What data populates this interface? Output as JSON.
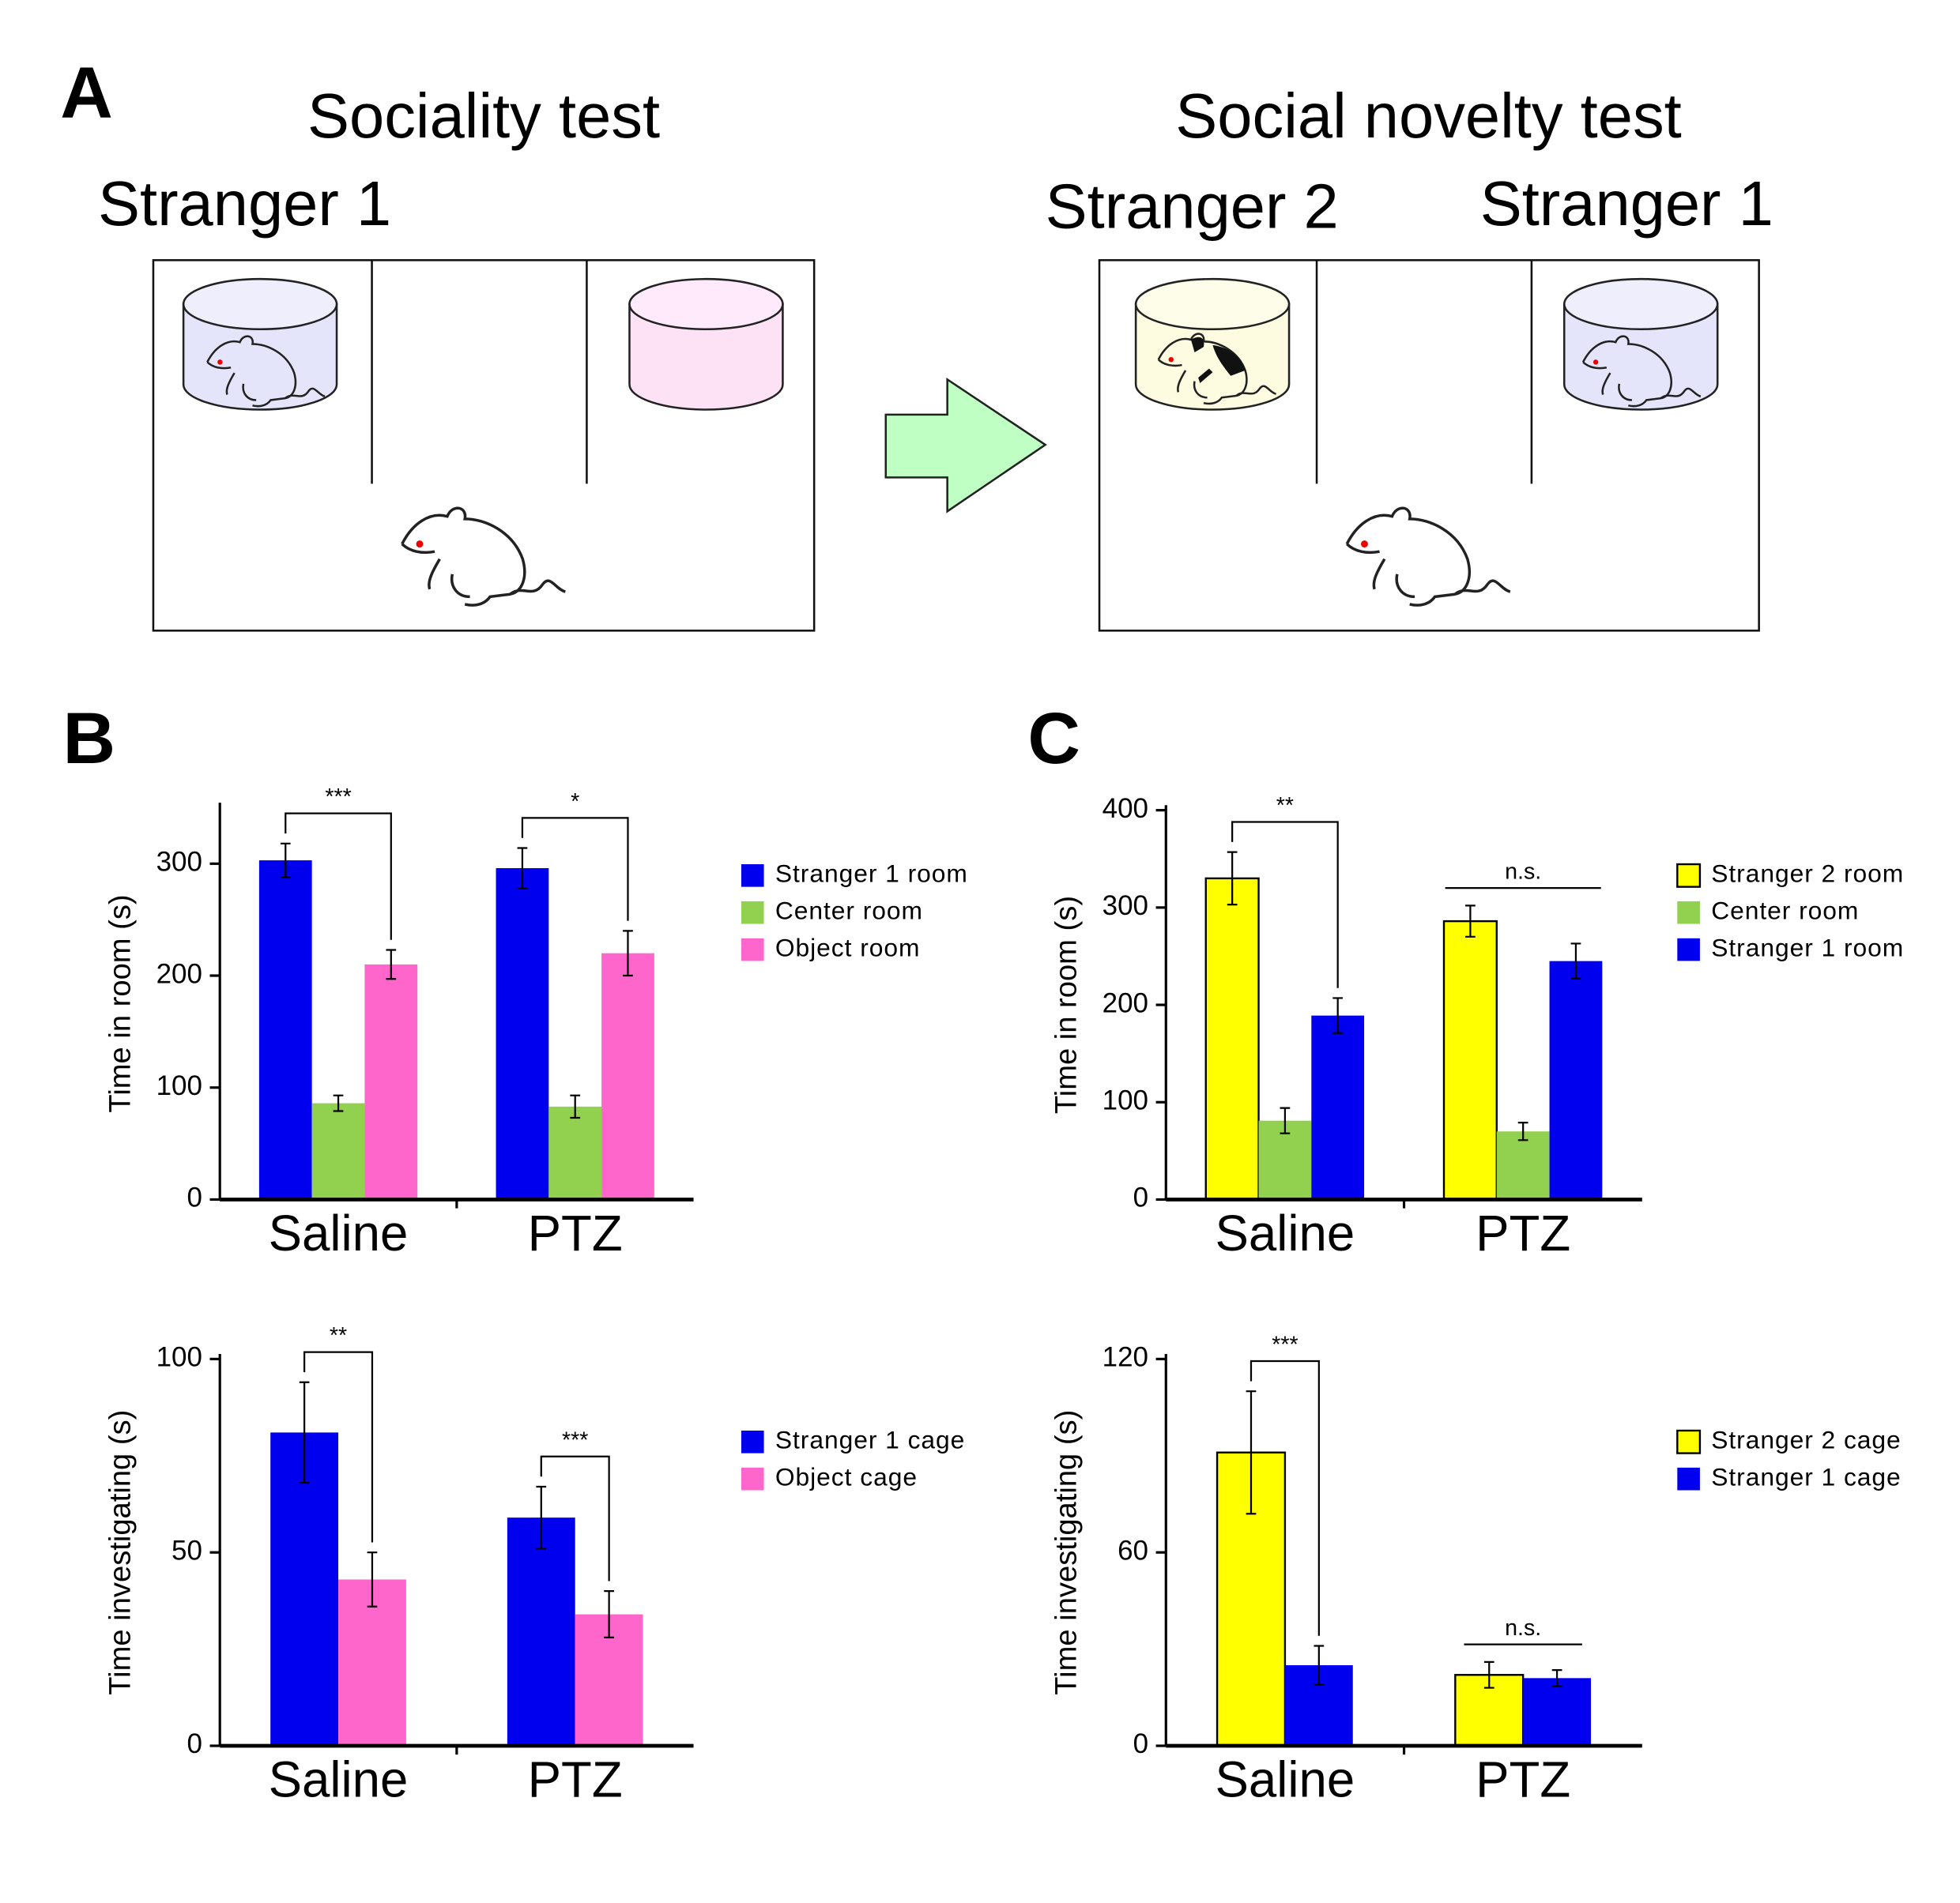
{
  "panel_a": {
    "label": "A",
    "left_title": "Sociality test",
    "left_stranger": "Stranger 1",
    "right_title": "Social novelty test",
    "right_stranger_left": "Stranger 2",
    "right_stranger_right": "Stranger 1"
  },
  "chart_data": [
    {
      "type": "bar",
      "label": "B",
      "ylabel": "Time in room (s)",
      "categories": [
        "Saline",
        "PTZ"
      ],
      "ylim": [
        0,
        350
      ],
      "yticks": [
        0,
        100,
        200,
        300
      ],
      "legend": "right",
      "series": [
        {
          "name": "Stranger 1 room",
          "color": "#0000ee",
          "values": [
            303,
            296
          ],
          "errors": [
            15,
            18
          ]
        },
        {
          "name": "Center room",
          "color": "#92d050",
          "values": [
            86,
            83
          ],
          "errors": [
            7,
            10
          ]
        },
        {
          "name": "Object room",
          "color": "#ff66cc",
          "values": [
            210,
            220
          ],
          "errors": [
            13,
            20
          ]
        }
      ],
      "annotations": [
        {
          "text": "***",
          "style": "bracket"
        },
        {
          "text": "*",
          "style": "bracket"
        }
      ]
    },
    {
      "type": "bar",
      "ylabel": "Time investigating (s)",
      "categories": [
        "Saline",
        "PTZ"
      ],
      "ylim": [
        0,
        100
      ],
      "yticks": [
        0,
        50,
        100
      ],
      "legend": "right",
      "series": [
        {
          "name": "Stranger 1 cage",
          "color": "#0000ee",
          "values": [
            81,
            59
          ],
          "errors": [
            13,
            8
          ]
        },
        {
          "name": "Object cage",
          "color": "#ff66cc",
          "values": [
            43,
            34
          ],
          "errors": [
            7,
            6
          ]
        }
      ],
      "annotations": [
        {
          "text": "**",
          "style": "bracket"
        },
        {
          "text": "***",
          "style": "bracket"
        }
      ]
    },
    {
      "type": "bar",
      "label": "C",
      "ylabel": "Time in room (s)",
      "categories": [
        "Saline",
        "PTZ"
      ],
      "ylim": [
        0,
        400
      ],
      "yticks": [
        0,
        100,
        200,
        300,
        400
      ],
      "legend": "right",
      "series": [
        {
          "name": "Stranger 2 room",
          "color": "#ffff00",
          "edgecolor": "#000000",
          "values": [
            330,
            286
          ],
          "errors": [
            27,
            16
          ]
        },
        {
          "name": "Center room",
          "color": "#92d050",
          "values": [
            81,
            70
          ],
          "errors": [
            13,
            9
          ]
        },
        {
          "name": "Stranger 1 room",
          "color": "#0000ee",
          "values": [
            189,
            245
          ],
          "errors": [
            18,
            18
          ]
        }
      ],
      "annotations": [
        {
          "text": "**",
          "style": "bracket"
        },
        {
          "text": "n.s.",
          "style": "line"
        }
      ]
    },
    {
      "type": "bar",
      "ylabel": "Time investigating (s)",
      "categories": [
        "Saline",
        "PTZ"
      ],
      "ylim": [
        0,
        120
      ],
      "yticks": [
        0,
        60,
        120
      ],
      "legend": "right",
      "series": [
        {
          "name": "Stranger 2 cage",
          "color": "#ffff00",
          "edgecolor": "#000000",
          "values": [
            91,
            22
          ],
          "errors": [
            19,
            4
          ]
        },
        {
          "name": "Stranger 1 cage",
          "color": "#0000ee",
          "values": [
            25,
            21
          ],
          "errors": [
            6,
            2.5
          ]
        }
      ],
      "annotations": [
        {
          "text": "***",
          "style": "bracket"
        },
        {
          "text": "n.s.",
          "style": "line"
        }
      ]
    }
  ]
}
